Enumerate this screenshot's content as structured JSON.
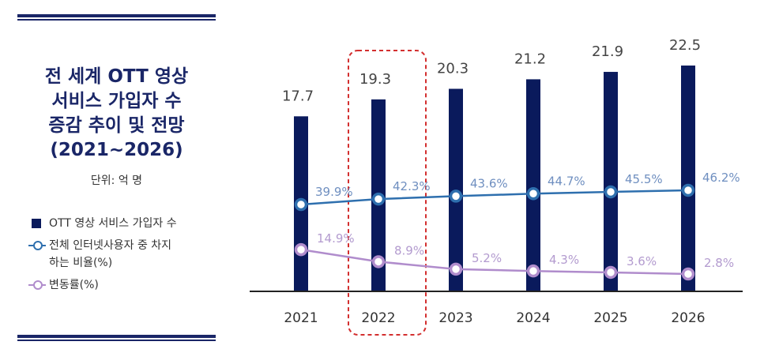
{
  "title_lines": [
    "전 세계 OTT 영상",
    "서비스 가입자 수",
    "증감 추이 및 전망",
    "(2021~2026)"
  ],
  "unit": "단위: 억 명",
  "legend": {
    "subscribers": "OTT 영상 서비스 가입자 수",
    "share_line1": "전체 인터넷사용자 중 차지",
    "share_line2": "하는 비율(%)",
    "change": "변동률(%)"
  },
  "colors": {
    "bar": "#0a1a5c",
    "share_line": "#2e6fae",
    "share_text": "#6f8fc0",
    "change_line": "#b08ccc",
    "change_text": "#b39bcf",
    "highlight": "#d32f2f",
    "title": "#1a2667"
  },
  "chart_data": {
    "type": "bar",
    "categories": [
      "2021",
      "2022",
      "2023",
      "2024",
      "2025",
      "2026"
    ],
    "series": [
      {
        "name": "OTT 영상 서비스 가입자 수",
        "unit": "억 명",
        "values": [
          17.7,
          19.3,
          20.3,
          21.2,
          21.9,
          22.5
        ],
        "labels": [
          "17.7",
          "19.3",
          "20.3",
          "21.2",
          "21.9",
          "22.5"
        ]
      },
      {
        "name": "전체 인터넷사용자 중 차지하는 비율(%)",
        "type": "line",
        "values": [
          39.9,
          42.3,
          43.6,
          44.7,
          45.5,
          46.2
        ],
        "labels": [
          "39.9%",
          "42.3%",
          "43.6%",
          "44.7%",
          "45.5%",
          "46.2%"
        ]
      },
      {
        "name": "변동률(%)",
        "type": "line",
        "values": [
          14.9,
          8.9,
          5.2,
          4.3,
          3.6,
          2.8
        ],
        "labels": [
          "14.9%",
          "8.9%",
          "5.2%",
          "4.3%",
          "3.6%",
          "2.8%"
        ]
      }
    ],
    "highlighted_category": "2022",
    "title": "전 세계 OTT 영상 서비스 가입자 수 증감 추이 및 전망 (2021~2026)",
    "ylabel": "단위: 억 명"
  }
}
